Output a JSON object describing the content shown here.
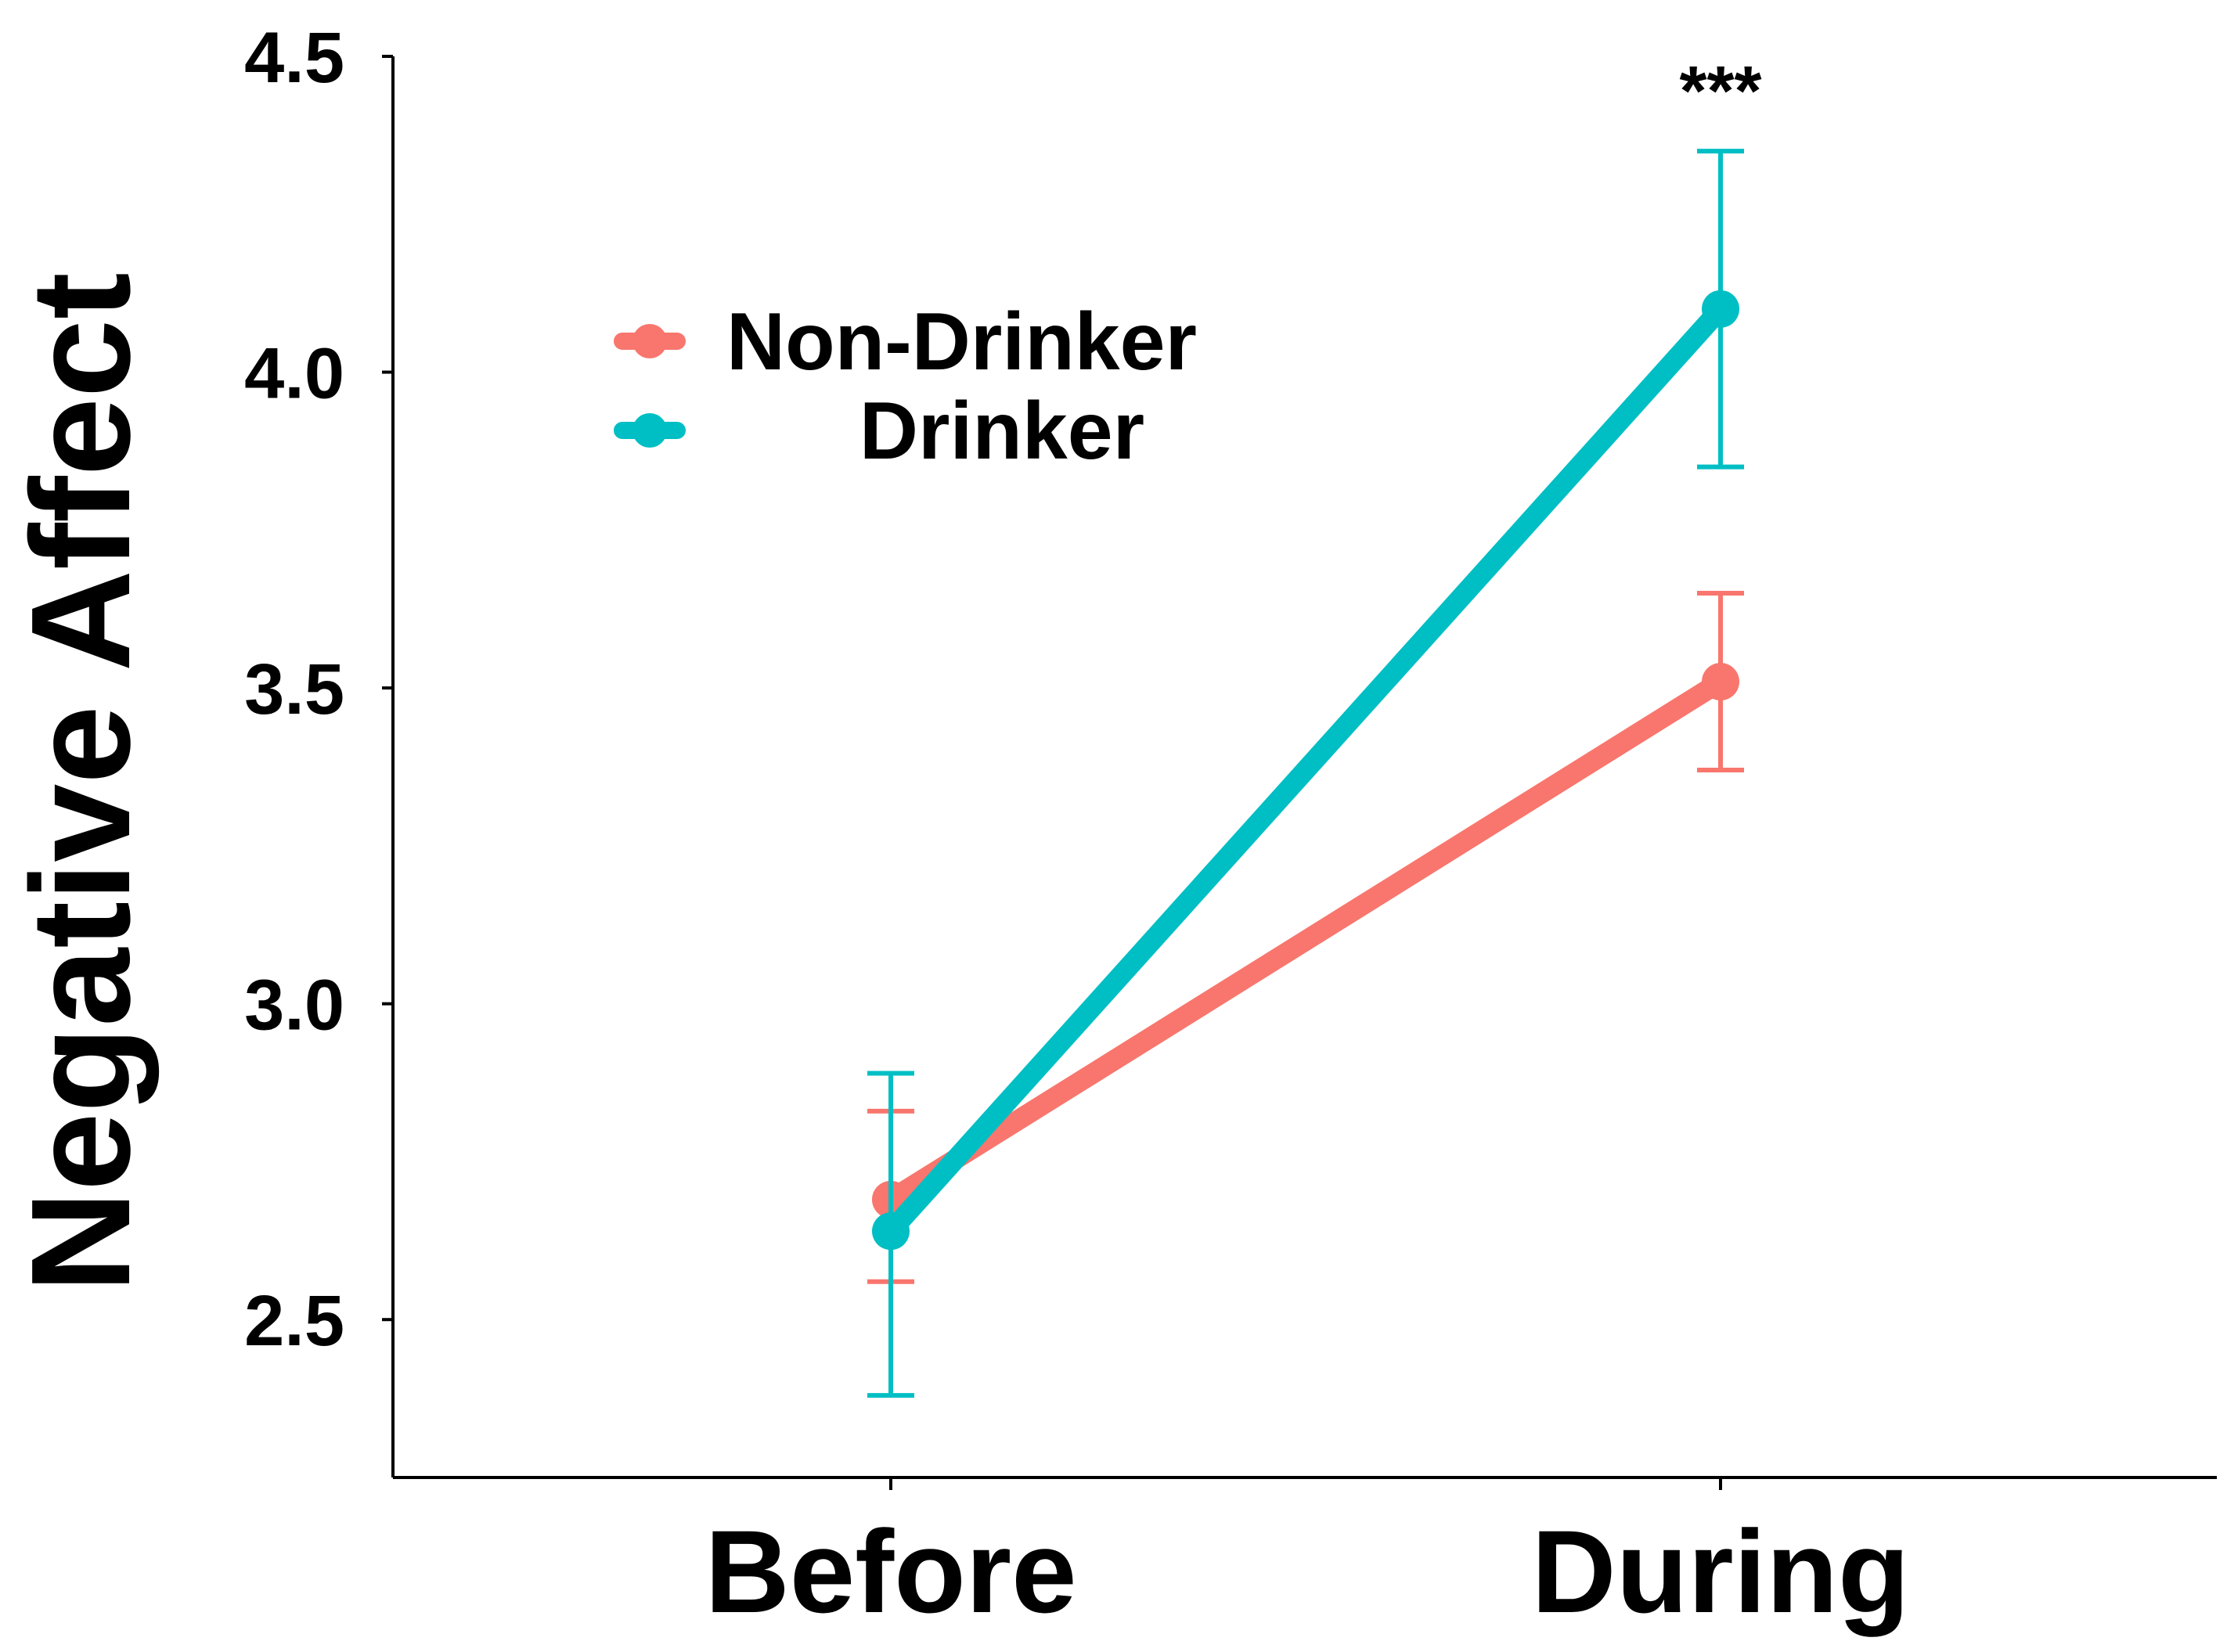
{
  "chart_data": {
    "type": "line",
    "title": "",
    "xlabel": "",
    "ylabel": "Negative Affect",
    "categories": [
      "Before",
      "During"
    ],
    "ylim": [
      2.25,
      4.5
    ],
    "yticks": [
      "2.5",
      "3.0",
      "3.5",
      "4.0",
      "4.5"
    ],
    "grid": false,
    "legend_position": "top-left",
    "series": [
      {
        "name": "Non-Drinker",
        "color": "#F8766D",
        "values": [
          2.69,
          3.51
        ],
        "error_low": [
          2.56,
          3.37
        ],
        "error_high": [
          2.83,
          3.65
        ]
      },
      {
        "name": "Drinker",
        "color": "#00BFC4",
        "values": [
          2.64,
          4.1
        ],
        "error_low": [
          2.38,
          3.85
        ],
        "error_high": [
          2.89,
          4.35
        ]
      }
    ],
    "annotations": [
      {
        "category": "During",
        "text": "***",
        "y": 4.37
      }
    ]
  }
}
